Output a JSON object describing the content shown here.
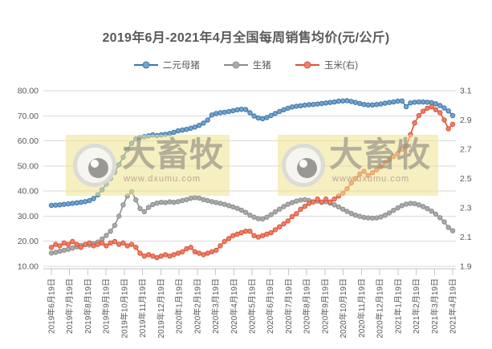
{
  "watermark": {
    "brand": "大畜牧",
    "url": "www.dxumu.com"
  },
  "chart_data": {
    "type": "line",
    "title": "2019年6月-2021年4月全国每周销售均价(元/公斤)",
    "frequency": "weekly",
    "legend_position": "top",
    "grid": true,
    "x_tick_labels": [
      "2019年6月19日",
      "2019年7月19日",
      "2019年8月19日",
      "2019年9月19日",
      "2019年10月19日",
      "2019年11月19日",
      "2019年12月19日",
      "2020年1月19日",
      "2020年2月19日",
      "2020年3月19日",
      "2020年4月19日",
      "2020年5月19日",
      "2020年6月19日",
      "2020年7月19日",
      "2020年8月19日",
      "2020年9月19日",
      "2020年10月19日",
      "2020年11月19日",
      "2020年12月19日",
      "2021年1月19日",
      "2021年2月19日",
      "2021年3月19日",
      "2021年4月19日"
    ],
    "y_axis_left": {
      "min": 10,
      "max": 80,
      "tick_labels": [
        "80.00",
        "70.00",
        "60.00",
        "50.00",
        "40.00",
        "30.00",
        "20.00",
        "10.00"
      ]
    },
    "y_axis_right": {
      "min": 1.9,
      "max": 3.1,
      "tick_labels": [
        "3.1",
        "2.9",
        "2.7",
        "2.5",
        "2.3",
        "2.1",
        "1.9"
      ]
    },
    "series": [
      {
        "name": "二元母猪",
        "key": "sow",
        "axis": "left",
        "line_color": "#3a76ab",
        "marker_color": "#74a3cd",
        "values": [
          34.3,
          34.4,
          34.5,
          34.7,
          34.9,
          35.1,
          35.3,
          35.5,
          35.8,
          36.2,
          37.0,
          38.5,
          40.5,
          42.8,
          45.0,
          47.5,
          50.5,
          53.5,
          56.5,
          59.0,
          60.8,
          61.3,
          61.7,
          62.0,
          62.4,
          62.1,
          62.4,
          62.6,
          62.9,
          63.4,
          64.0,
          64.3,
          64.6,
          65.0,
          65.5,
          66.2,
          67.1,
          68.3,
          70.3,
          70.9,
          71.2,
          71.4,
          71.7,
          72.0,
          72.4,
          72.6,
          72.5,
          71.2,
          69.9,
          69.1,
          68.8,
          69.3,
          70.1,
          70.9,
          71.7,
          72.4,
          73.0,
          73.5,
          73.8,
          74.0,
          74.2,
          74.4,
          74.5,
          74.7,
          74.9,
          75.1,
          75.3,
          75.5,
          75.8,
          75.9,
          76.0,
          75.7,
          75.3,
          74.9,
          74.5,
          74.3,
          74.3,
          74.5,
          74.7,
          75.0,
          75.3,
          75.5,
          75.8,
          75.9,
          73.6,
          75.1,
          75.4,
          75.5,
          75.5,
          75.4,
          75.2,
          74.8,
          74.1,
          73.1,
          71.9,
          70.1
        ]
      },
      {
        "name": "生猪",
        "key": "hog",
        "axis": "left",
        "line_color": "#8c8c8c",
        "marker_color": "#ababab",
        "values": [
          15.3,
          15.6,
          16.0,
          16.4,
          16.8,
          17.3,
          17.8,
          18.3,
          18.7,
          18.5,
          19.0,
          19.7,
          20.9,
          22.3,
          24.0,
          26.3,
          30.0,
          34.5,
          38.0,
          39.8,
          36.5,
          33.0,
          31.8,
          33.5,
          34.6,
          35.2,
          35.5,
          35.4,
          35.7,
          35.5,
          35.8,
          36.2,
          36.6,
          37.1,
          37.4,
          37.2,
          36.6,
          36.2,
          35.8,
          35.4,
          35.1,
          34.7,
          34.2,
          33.7,
          33.1,
          32.4,
          31.5,
          30.4,
          29.6,
          29.0,
          28.9,
          29.6,
          30.6,
          31.7,
          32.8,
          33.8,
          34.7,
          35.4,
          36.0,
          36.4,
          36.6,
          36.2,
          35.7,
          36.0,
          35.5,
          35.8,
          35.2,
          34.5,
          33.7,
          32.8,
          31.9,
          31.1,
          30.4,
          29.9,
          29.5,
          29.3,
          29.2,
          29.3,
          29.7,
          30.4,
          31.3,
          32.3,
          33.3,
          34.2,
          34.8,
          35.1,
          35.0,
          34.5,
          33.8,
          33.0,
          32.0,
          30.8,
          29.4,
          27.7,
          25.5,
          24.2
        ]
      },
      {
        "name": "玉米(右)",
        "key": "corn",
        "axis": "right",
        "line_color": "#dd5138",
        "marker_color": "#ec8168",
        "values": [
          2.03,
          2.05,
          2.04,
          2.06,
          2.05,
          2.07,
          2.05,
          2.03,
          2.05,
          2.06,
          2.04,
          2.05,
          2.06,
          2.04,
          2.06,
          2.07,
          2.05,
          2.06,
          2.04,
          2.05,
          2.03,
          1.99,
          1.97,
          1.98,
          1.97,
          1.96,
          1.97,
          1.98,
          1.97,
          1.98,
          1.99,
          2.0,
          2.02,
          2.03,
          2.0,
          1.99,
          1.98,
          1.99,
          2.0,
          2.01,
          2.04,
          2.07,
          2.09,
          2.11,
          2.12,
          2.13,
          2.14,
          2.14,
          2.11,
          2.1,
          2.11,
          2.12,
          2.13,
          2.15,
          2.17,
          2.19,
          2.21,
          2.24,
          2.26,
          2.29,
          2.31,
          2.33,
          2.34,
          2.36,
          2.34,
          2.36,
          2.34,
          2.36,
          2.38,
          2.4,
          2.43,
          2.47,
          2.5,
          2.53,
          2.55,
          2.52,
          2.54,
          2.56,
          2.58,
          2.61,
          2.63,
          2.65,
          2.67,
          2.7,
          2.72,
          2.8,
          2.88,
          2.93,
          2.96,
          2.98,
          2.99,
          2.97,
          2.95,
          2.9,
          2.84,
          2.87
        ]
      }
    ]
  }
}
